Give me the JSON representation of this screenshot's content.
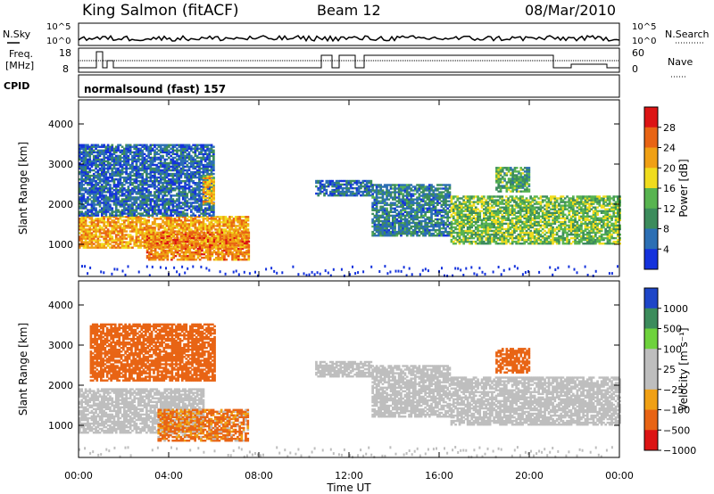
{
  "header": {
    "station": "King Salmon (fitACF)",
    "beam": "Beam 12",
    "date": "08/Mar/2010"
  },
  "status": {
    "nsky_label": "N.Sky",
    "nsearch_label": "N.Search",
    "left_ticks": [
      "10^5",
      "10^0"
    ],
    "right_ticks": [
      "10^5",
      "10^0"
    ],
    "freq_label": "Freq.",
    "freq_unit": "[MHz]",
    "freq_ticks": [
      "18",
      "8"
    ],
    "nave_label": "Nave",
    "nave_ticks": [
      "60",
      "0"
    ],
    "cpid_label": "CPID",
    "cpid_value": "normalsound (fast) 157"
  },
  "colors": {
    "power_scale": [
      "#1432dc",
      "#2c6fb4",
      "#3c8c5c",
      "#58b450",
      "#f0dc1e",
      "#f0a014",
      "#e86414",
      "#dc1414"
    ],
    "velocity_scale": [
      "#1e46c8",
      "#3c8c5c",
      "#6ed23c",
      "#bebebe",
      "#bebebe",
      "#f0a014",
      "#e86414",
      "#dc1414"
    ]
  },
  "chart_data": [
    {
      "type": "heatmap",
      "title": "Power",
      "xlabel": "Time UT",
      "ylabel": "Slant Range [km]",
      "x_ticks": [
        "00:00",
        "04:00",
        "08:00",
        "12:00",
        "16:00",
        "20:00",
        "00:00"
      ],
      "y_ticks": [
        "1000",
        "2000",
        "3000",
        "4000"
      ],
      "ylim": [
        200,
        4600
      ],
      "colorbar_label": "Power [dB]",
      "colorbar_ticks": [
        "28",
        "24",
        "20",
        "16",
        "12",
        "8",
        "4"
      ],
      "colorbar_range": [
        0,
        32
      ],
      "regions": [
        {
          "t": [
            0.0,
            7.5
          ],
          "r": [
            900,
            1700
          ],
          "level": 22
        },
        {
          "t": [
            0.0,
            6.0
          ],
          "r": [
            1700,
            3500
          ],
          "level": 6
        },
        {
          "t": [
            3.0,
            7.5
          ],
          "r": [
            600,
            1300
          ],
          "level": 24
        },
        {
          "t": [
            5.5,
            6.0
          ],
          "r": [
            2000,
            2700
          ],
          "level": 20
        },
        {
          "t": [
            10.5,
            13.0
          ],
          "r": [
            2200,
            2600
          ],
          "level": 6
        },
        {
          "t": [
            13.0,
            16.5
          ],
          "r": [
            1200,
            2500
          ],
          "level": 8
        },
        {
          "t": [
            16.5,
            24.0
          ],
          "r": [
            1000,
            2200
          ],
          "level": 14
        },
        {
          "t": [
            18.5,
            20.0
          ],
          "r": [
            2300,
            2900
          ],
          "level": 12
        }
      ]
    },
    {
      "type": "heatmap",
      "title": "Velocity",
      "xlabel": "Time UT",
      "ylabel": "Slant Range [km]",
      "x_ticks": [
        "00:00",
        "04:00",
        "08:00",
        "12:00",
        "16:00",
        "20:00",
        "00:00"
      ],
      "y_ticks": [
        "1000",
        "2000",
        "3000",
        "4000"
      ],
      "ylim": [
        200,
        4600
      ],
      "colorbar_label": "Velocity [m s⁻¹]",
      "colorbar_ticks": [
        "1000",
        "500",
        "100",
        "25",
        "−25",
        "−100",
        "−500",
        "−1000"
      ],
      "regions": [
        {
          "t": [
            0.0,
            5.5
          ],
          "r": [
            800,
            1900
          ],
          "level": 0
        },
        {
          "t": [
            0.5,
            6.0
          ],
          "r": [
            2100,
            3500
          ],
          "level": -300
        },
        {
          "t": [
            3.5,
            7.5
          ],
          "r": [
            600,
            1400
          ],
          "level": -150
        },
        {
          "t": [
            10.5,
            13.0
          ],
          "r": [
            2200,
            2600
          ],
          "level": 0
        },
        {
          "t": [
            13.0,
            16.5
          ],
          "r": [
            1200,
            2500
          ],
          "level": 0
        },
        {
          "t": [
            16.5,
            24.0
          ],
          "r": [
            1000,
            2200
          ],
          "level": 0
        },
        {
          "t": [
            18.5,
            20.0
          ],
          "r": [
            2300,
            2900
          ],
          "level": -300
        }
      ]
    }
  ]
}
